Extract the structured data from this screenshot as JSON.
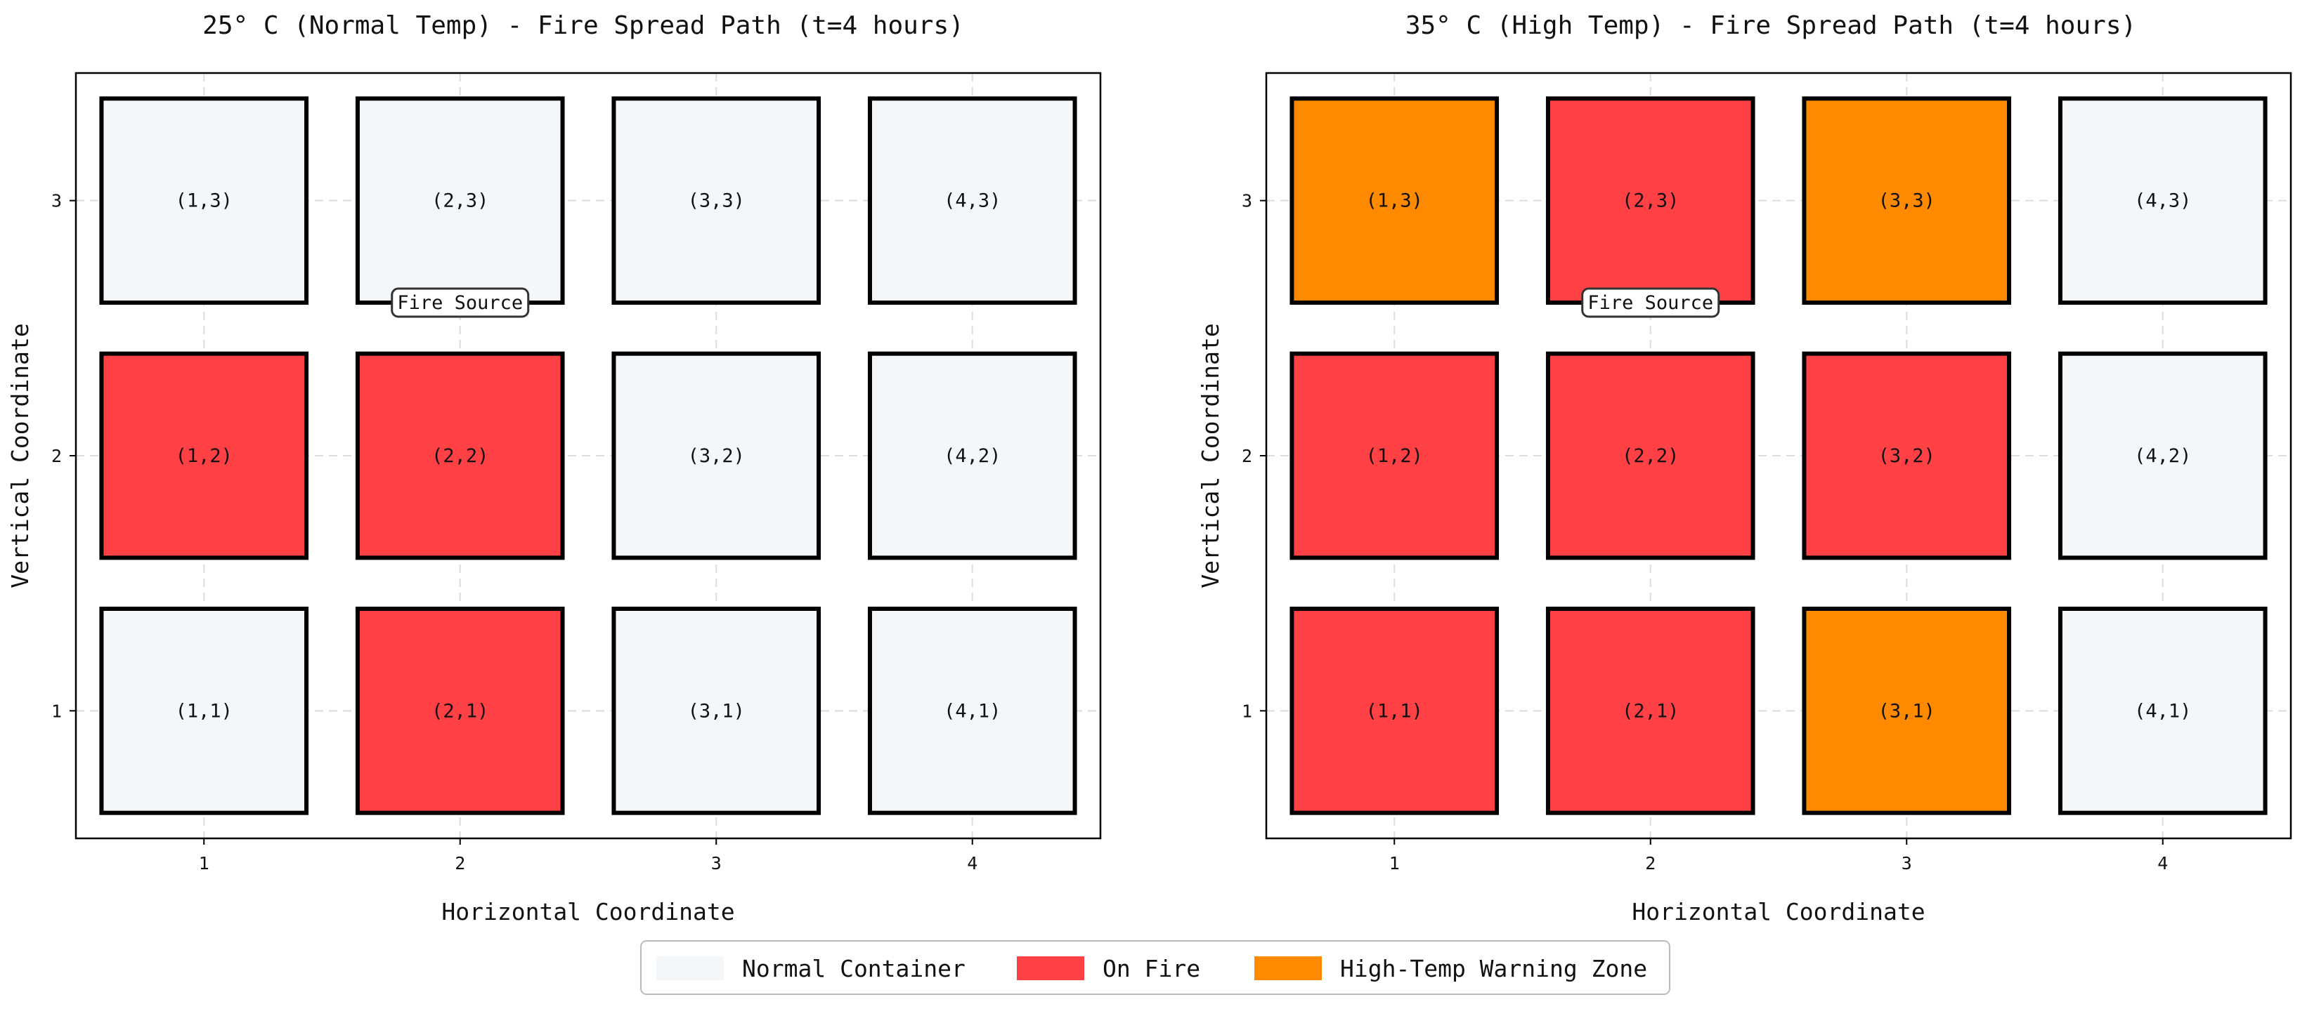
{
  "colors": {
    "normal": "#f4f7fa",
    "fire": "#ff4045",
    "warning": "#ff8a00",
    "edge": "#000000",
    "grid": "#dddddd"
  },
  "chart_data": [
    {
      "type": "heatmap",
      "title": "25° C (Normal Temp) - Fire Spread Path (t=4 hours)",
      "xlabel": "Horizontal Coordinate",
      "ylabel": "Vertical Coordinate",
      "xticks": [
        1,
        2,
        3,
        4
      ],
      "yticks": [
        1,
        2,
        3
      ],
      "xlim": [
        0.5,
        4.5
      ],
      "ylim": [
        0.5,
        3.5
      ],
      "grid": true,
      "fire_source": {
        "text": "Fire Source",
        "x": 2,
        "y": 2.6
      },
      "cells": [
        {
          "x": 1,
          "y": 3,
          "label": "(1,3)",
          "state": "normal"
        },
        {
          "x": 2,
          "y": 3,
          "label": "(2,3)",
          "state": "normal"
        },
        {
          "x": 3,
          "y": 3,
          "label": "(3,3)",
          "state": "normal"
        },
        {
          "x": 4,
          "y": 3,
          "label": "(4,3)",
          "state": "normal"
        },
        {
          "x": 1,
          "y": 2,
          "label": "(1,2)",
          "state": "fire"
        },
        {
          "x": 2,
          "y": 2,
          "label": "(2,2)",
          "state": "fire"
        },
        {
          "x": 3,
          "y": 2,
          "label": "(3,2)",
          "state": "normal"
        },
        {
          "x": 4,
          "y": 2,
          "label": "(4,2)",
          "state": "normal"
        },
        {
          "x": 1,
          "y": 1,
          "label": "(1,1)",
          "state": "normal"
        },
        {
          "x": 2,
          "y": 1,
          "label": "(2,1)",
          "state": "fire"
        },
        {
          "x": 3,
          "y": 1,
          "label": "(3,1)",
          "state": "normal"
        },
        {
          "x": 4,
          "y": 1,
          "label": "(4,1)",
          "state": "normal"
        }
      ]
    },
    {
      "type": "heatmap",
      "title": "35° C (High Temp) - Fire Spread Path (t=4 hours)",
      "xlabel": "Horizontal Coordinate",
      "ylabel": "Vertical Coordinate",
      "xticks": [
        1,
        2,
        3,
        4
      ],
      "yticks": [
        1,
        2,
        3
      ],
      "xlim": [
        0.5,
        4.5
      ],
      "ylim": [
        0.5,
        3.5
      ],
      "grid": true,
      "fire_source": {
        "text": "Fire Source",
        "x": 2,
        "y": 2.6
      },
      "cells": [
        {
          "x": 1,
          "y": 3,
          "label": "(1,3)",
          "state": "warning"
        },
        {
          "x": 2,
          "y": 3,
          "label": "(2,3)",
          "state": "fire"
        },
        {
          "x": 3,
          "y": 3,
          "label": "(3,3)",
          "state": "warning"
        },
        {
          "x": 4,
          "y": 3,
          "label": "(4,3)",
          "state": "normal"
        },
        {
          "x": 1,
          "y": 2,
          "label": "(1,2)",
          "state": "fire"
        },
        {
          "x": 2,
          "y": 2,
          "label": "(2,2)",
          "state": "fire"
        },
        {
          "x": 3,
          "y": 2,
          "label": "(3,2)",
          "state": "fire"
        },
        {
          "x": 4,
          "y": 2,
          "label": "(4,2)",
          "state": "normal"
        },
        {
          "x": 1,
          "y": 1,
          "label": "(1,1)",
          "state": "fire"
        },
        {
          "x": 2,
          "y": 1,
          "label": "(2,1)",
          "state": "fire"
        },
        {
          "x": 3,
          "y": 1,
          "label": "(3,1)",
          "state": "warning"
        },
        {
          "x": 4,
          "y": 1,
          "label": "(4,1)",
          "state": "normal"
        }
      ]
    }
  ],
  "legend": {
    "placement": "bottom-center",
    "entries": [
      {
        "label": "Normal Container",
        "state": "normal"
      },
      {
        "label": "On Fire",
        "state": "fire"
      },
      {
        "label": "High-Temp Warning Zone",
        "state": "warning"
      }
    ]
  }
}
